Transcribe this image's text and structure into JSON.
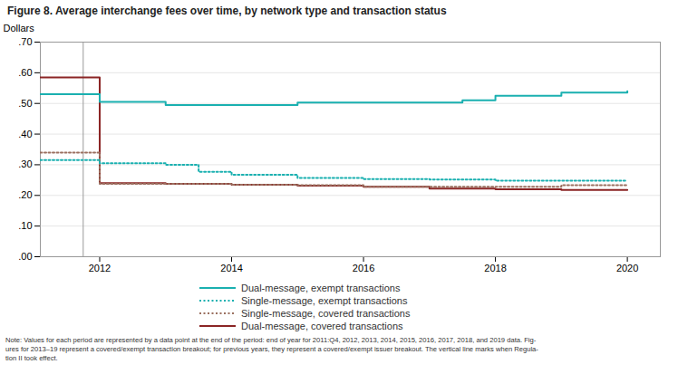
{
  "chart_data": {
    "type": "step",
    "title": "Figure 8. Average interchange fees over time, by network type and transaction status",
    "ylabel": "Dollars",
    "xlim": [
      2011.1,
      2020.5
    ],
    "xticks": [
      2012,
      2014,
      2016,
      2018,
      2020
    ],
    "ylim": [
      0.0,
      0.7
    ],
    "yticks": [
      {
        "value": 0.0,
        "label": ".00"
      },
      {
        "value": 0.1,
        "label": ".10"
      },
      {
        "value": 0.2,
        "label": ".20"
      },
      {
        "value": 0.3,
        "label": ".30"
      },
      {
        "value": 0.4,
        "label": ".40"
      },
      {
        "value": 0.5,
        "label": ".50"
      },
      {
        "value": 0.6,
        "label": ".60"
      },
      {
        "value": 0.7,
        "label": ".70"
      }
    ],
    "grid": true,
    "legend": "bottom",
    "series": [
      {
        "name": "Dual-message, exempt transactions",
        "color": "#1ab0b0",
        "line_style": "solid",
        "x": [
          2011.1,
          2011.75,
          2012,
          2013,
          2014,
          2015,
          2016,
          2017,
          2017.5,
          2018,
          2018.5,
          2019,
          2020
        ],
        "values": [
          0.53,
          0.53,
          0.505,
          0.495,
          0.495,
          0.503,
          0.503,
          0.503,
          0.51,
          0.525,
          0.525,
          0.535,
          0.54
        ]
      },
      {
        "name": "Single-message, exempt transactions",
        "color": "#1ab0b0",
        "line_style": "dotted",
        "x": [
          2011.1,
          2011.75,
          2012,
          2013,
          2013.5,
          2014,
          2015,
          2016,
          2017,
          2018,
          2019,
          2020
        ],
        "values": [
          0.315,
          0.315,
          0.305,
          0.3,
          0.277,
          0.267,
          0.257,
          0.253,
          0.252,
          0.248,
          0.248,
          0.248
        ]
      },
      {
        "name": "Single-message, covered transactions",
        "color": "#9b7060",
        "line_style": "dotted",
        "x": [
          2011.1,
          2011.75,
          2012,
          2013,
          2014,
          2015,
          2016,
          2017,
          2018,
          2019,
          2020
        ],
        "values": [
          0.34,
          0.34,
          0.238,
          0.238,
          0.235,
          0.233,
          0.228,
          0.228,
          0.228,
          0.233,
          0.233
        ]
      },
      {
        "name": "Dual-message, covered transactions",
        "color": "#8b2525",
        "line_style": "solid",
        "x": [
          2011.1,
          2011.75,
          2012,
          2013,
          2014,
          2015,
          2016,
          2017,
          2018,
          2019,
          2020
        ],
        "values": [
          0.585,
          0.585,
          0.24,
          0.238,
          0.235,
          0.232,
          0.228,
          0.222,
          0.22,
          0.218,
          0.218
        ]
      }
    ],
    "reference_lines": [
      {
        "x": 2011.75,
        "color": "#999999"
      }
    ],
    "caption": [
      "Note: Values for each period are represented by a data point at the end of the period: end of year for 2011:Q4, 2012, 2013, 2014, 2015, 2016, 2017, 2018, and 2019 data. Fig-",
      "ures for 2013–19 represent a covered/exempt transaction breakout; for previous years, they represent a covered/exempt issuer breakout. The vertical line marks when Regula-",
      "tion II took effect."
    ]
  }
}
